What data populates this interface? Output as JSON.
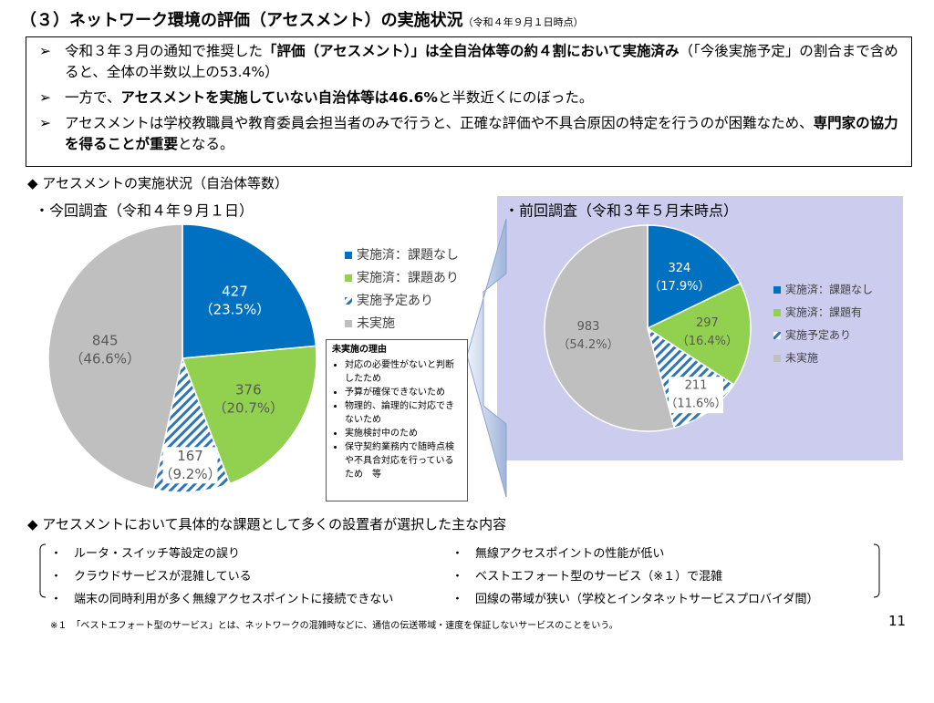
{
  "header": {
    "title": "（３）ネットワーク環境の評価（アセスメント）の実施状況",
    "note": "（令和４年９月１日時点）"
  },
  "summary": [
    [
      {
        "text": "令和３年３月の通知で推奨した",
        "bold": false
      },
      {
        "text": "「評価（アセスメント）」は全自治体等の約４割において実施済み",
        "bold": true
      },
      {
        "text": "（「今後実施予定」の割合まで含めると、全体の半数以上の53.4%）",
        "bold": false
      }
    ],
    [
      {
        "text": "一方で、",
        "bold": false
      },
      {
        "text": "アセスメントを実施していない自治体等は46.6%",
        "bold": true
      },
      {
        "text": "と半数近くにのぼった。",
        "bold": false
      }
    ],
    [
      {
        "text": "アセスメントは学校教職員や教育委員会担当者のみで行うと、正確な評価や不具合原因の特定を行うのが困難なため、",
        "bold": false
      },
      {
        "text": "専門家の協力を得ることが重要",
        "bold": true
      },
      {
        "text": "となる。",
        "bold": false
      }
    ]
  ],
  "section1": "◆ アセスメントの実施状況（自治体等数）",
  "chart_data": [
    {
      "type": "pie",
      "title": "・今回調査（令和４年９月１日）",
      "categories": [
        "実施済：課題なし",
        "実施済：課題あり",
        "実施予定あり",
        "未実施"
      ],
      "values": [
        427,
        376,
        167,
        845
      ],
      "percent_labels": [
        "（23.5%）",
        "（20.7%）",
        "（9.2%）",
        "（46.6%）"
      ],
      "colors": [
        "#0070c0",
        "#92d050",
        "#2e75b6",
        "#bfbfbf"
      ],
      "hatched": [
        false,
        false,
        true,
        false
      ]
    },
    {
      "type": "pie",
      "title": "・前回調査（令和３年５月末時点）",
      "categories": [
        "実施済：課題なし",
        "実施済：課題有",
        "実施予定あり",
        "未実施"
      ],
      "values": [
        324,
        297,
        211,
        983
      ],
      "percent_labels": [
        "（17.9%）",
        "（16.4%）",
        "（11.6%）",
        "（54.2%）"
      ],
      "colors": [
        "#0070c0",
        "#92d050",
        "#2e75b6",
        "#bfbfbf"
      ],
      "hatched": [
        false,
        false,
        true,
        false
      ]
    }
  ],
  "reasons": {
    "title": "未実施の理由",
    "items": [
      "対応の必要性がないと判断したため",
      "予算が確保できないため",
      "物理的、論理的に対応できないため",
      "実施検討中のため",
      "保守契約業務内で随時点検や不具合対応を行っているため　等"
    ]
  },
  "section2": "◆ アセスメントにおいて具体的な課題として多くの設置者が選択した主な内容",
  "issues": [
    [
      "ルータ・スイッチ等設定の誤り",
      "クラウドサービスが混雑している",
      "端末の同時利用が多く無線アクセスポイントに接続できない"
    ],
    [
      "無線アクセスポイントの性能が低い",
      "ベストエフォート型のサービス（※１）で混雑",
      "回線の帯域が狭い（学校とインタネットサービスプロバイダ間）"
    ]
  ],
  "footnote": "※１　「ベストエフォート型のサービス」とは、ネットワークの混雑時などに、通信の伝送帯域・速度を保証しないサービスのことをいう。",
  "page_number": "11"
}
